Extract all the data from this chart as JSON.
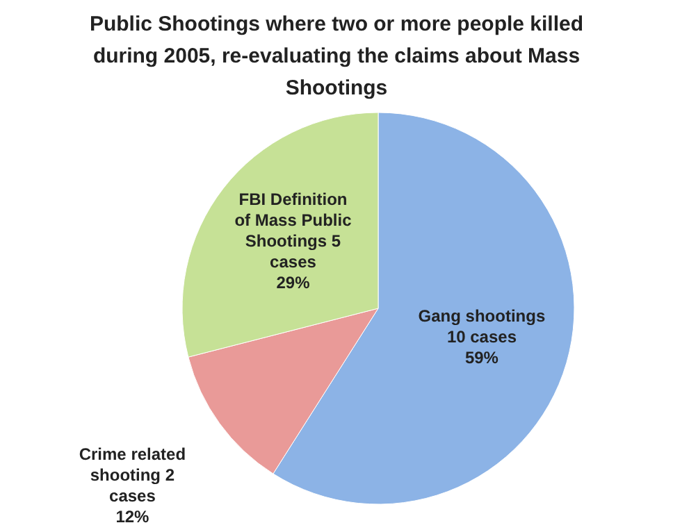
{
  "chart_data": {
    "type": "pie",
    "title": "Public Shootings where two or more people killed during 2005, re-evaluating the claims about Mass Shootings",
    "categories": [
      "Gang shootings 10 cases",
      "Crime related shooting 2 cases",
      "FBI Definition of Mass Public Shootings 5 cases"
    ],
    "values": [
      59,
      12,
      29
    ],
    "colors": [
      "#8cb3e6",
      "#e99a98",
      "#c6e196"
    ],
    "value_labels": [
      "59%",
      "12%",
      "29%"
    ],
    "legend": false
  }
}
